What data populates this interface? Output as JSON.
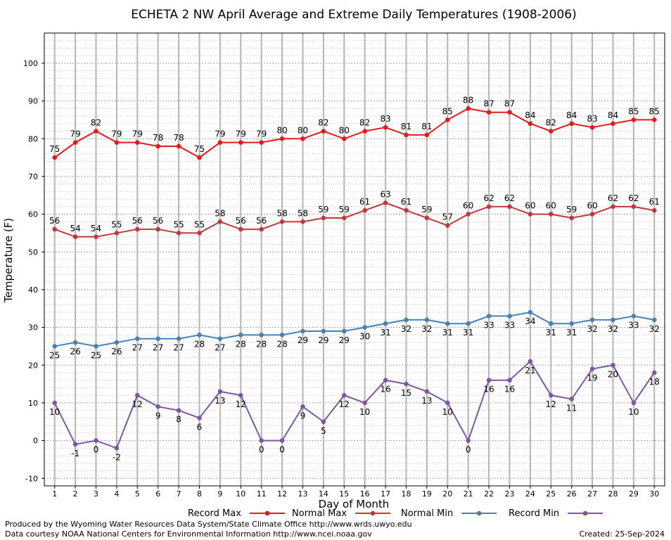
{
  "chart_data": {
    "type": "line",
    "title": "ECHETA 2 NW April Average and Extreme Daily Temperatures (1908-2006)",
    "xlabel": "Day of Month",
    "ylabel": "Temperature (F)",
    "ylim": [
      -12,
      108
    ],
    "yticks": [
      -10,
      0,
      10,
      20,
      30,
      40,
      50,
      60,
      70,
      80,
      90,
      100
    ],
    "x": [
      1,
      2,
      3,
      4,
      5,
      6,
      7,
      8,
      9,
      10,
      11,
      12,
      13,
      14,
      15,
      16,
      17,
      18,
      19,
      20,
      21,
      22,
      23,
      24,
      25,
      26,
      27,
      28,
      29,
      30
    ],
    "grid": true,
    "legend_position": "bottom",
    "series": [
      {
        "name": "Record Max",
        "color": "#e41a1c",
        "values": [
          75,
          79,
          82,
          79,
          79,
          78,
          78,
          75,
          79,
          79,
          79,
          80,
          80,
          82,
          80,
          82,
          83,
          81,
          81,
          85,
          88,
          87,
          87,
          84,
          82,
          84,
          83,
          84,
          85,
          85
        ]
      },
      {
        "name": "Normal Max",
        "color": "#c0393d",
        "values": [
          56,
          54,
          54,
          55,
          56,
          56,
          55,
          55,
          58,
          56,
          56,
          58,
          58,
          59,
          59,
          61,
          63,
          61,
          59,
          57,
          60,
          62,
          62,
          60,
          60,
          59,
          60,
          62,
          62,
          61
        ]
      },
      {
        "name": "Normal Min",
        "color": "#4682b4",
        "values": [
          25,
          26,
          25,
          26,
          27,
          27,
          27,
          28,
          27,
          28,
          28,
          28,
          29,
          29,
          29,
          30,
          31,
          32,
          32,
          31,
          31,
          33,
          33,
          34,
          31,
          31,
          32,
          32,
          33,
          32
        ]
      },
      {
        "name": "Record Min",
        "color": "#7e57a0",
        "values": [
          10,
          -1,
          0,
          -2,
          12,
          9,
          8,
          6,
          13,
          12,
          0,
          0,
          9,
          5,
          12,
          10,
          16,
          15,
          13,
          10,
          0,
          16,
          16,
          21,
          12,
          11,
          19,
          20,
          10,
          18
        ]
      }
    ]
  },
  "footer": {
    "line1": "Produced by the Wyoming Water Resources Data System/State Climate Office http://www.wrds.uwyo.edu",
    "line2": "Data courtesy NOAA National Centers for Environmental Information http://www.ncei.noaa.gov",
    "created": "Created:  25-Sep-2024"
  }
}
